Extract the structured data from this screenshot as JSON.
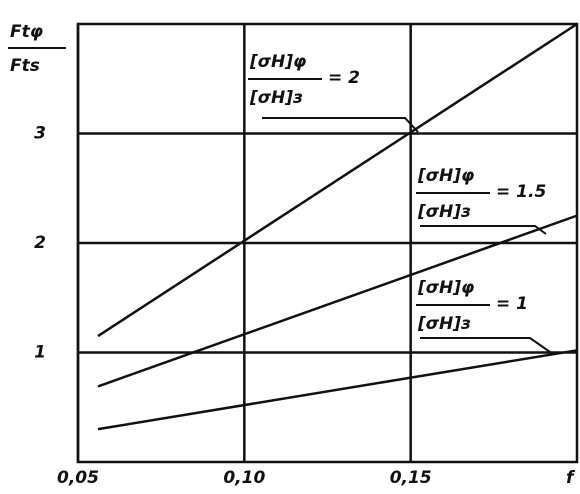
{
  "chart_data": {
    "type": "line",
    "y_label_numerator": "Ftφ",
    "y_label_denominator": "Fts",
    "x_label": "f",
    "x": [
      0.056,
      0.2
    ],
    "series": [
      {
        "color": "#111111",
        "values": [
          1.15,
          4.0
        ]
      },
      {
        "color": "#111111",
        "values": [
          0.69,
          2.25
        ]
      },
      {
        "color": "#111111",
        "values": [
          0.3,
          1.02
        ]
      }
    ],
    "annotations": [
      {
        "numerator": "[σH]φ",
        "denominator": "[σH]з",
        "text": "= 2"
      },
      {
        "numerator": "[σH]φ",
        "denominator": "[σH]з",
        "text": "= 1.5"
      },
      {
        "numerator": "[σH]φ",
        "denominator": "[σH]з",
        "text": "= 1"
      }
    ],
    "xlim": [
      0.05,
      0.2
    ],
    "ylim": [
      0,
      4
    ],
    "xticks": [
      {
        "value": 0.05,
        "label": "0,05"
      },
      {
        "value": 0.1,
        "label": "0,10"
      },
      {
        "value": 0.15,
        "label": "0,15"
      }
    ],
    "yticks": [
      1,
      2,
      3
    ],
    "grid": true
  }
}
